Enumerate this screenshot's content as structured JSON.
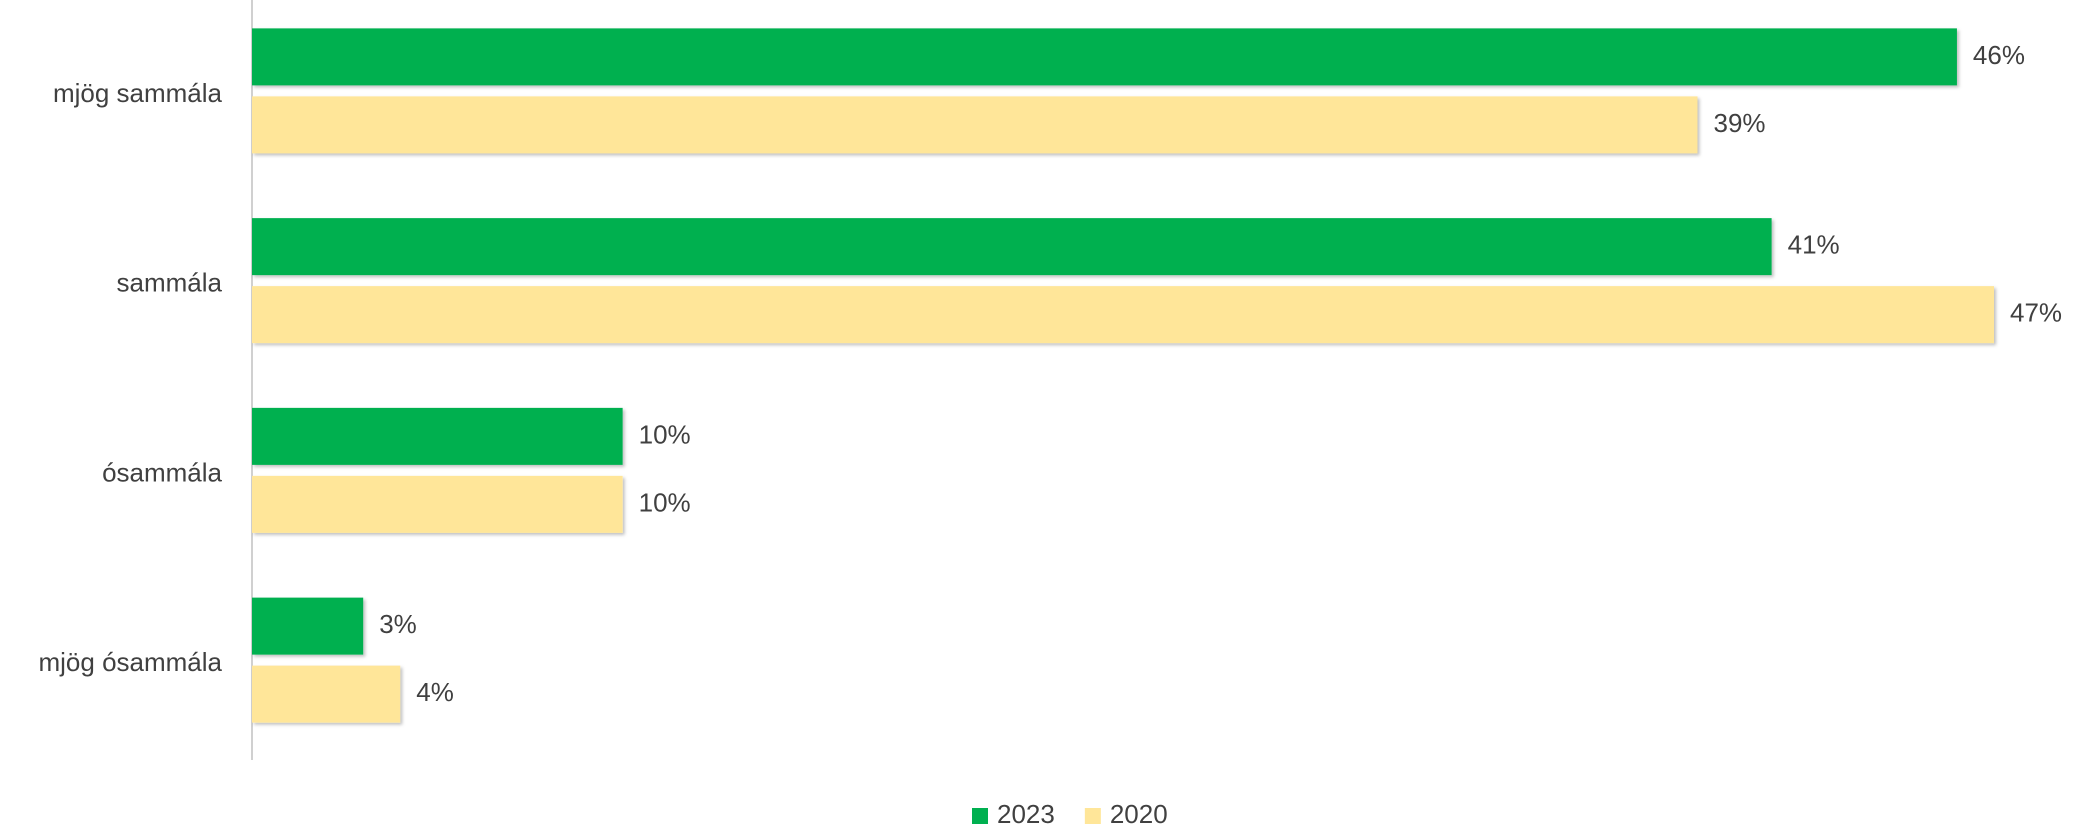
{
  "chart_data": {
    "type": "hbar",
    "categories": [
      "mjög sammála",
      "sammála",
      "ósammála",
      "mjög ósammála"
    ],
    "series": [
      {
        "name": "2023",
        "color": "#00b050",
        "values": [
          46,
          41,
          10,
          3
        ],
        "value_labels": [
          "46%",
          "41%",
          "10%",
          "3%"
        ]
      },
      {
        "name": "2020",
        "color": "#ffe699",
        "values": [
          39,
          47,
          10,
          4
        ],
        "value_labels": [
          "39%",
          "47%",
          "10%",
          "4%"
        ]
      }
    ],
    "legend": "bottom"
  }
}
